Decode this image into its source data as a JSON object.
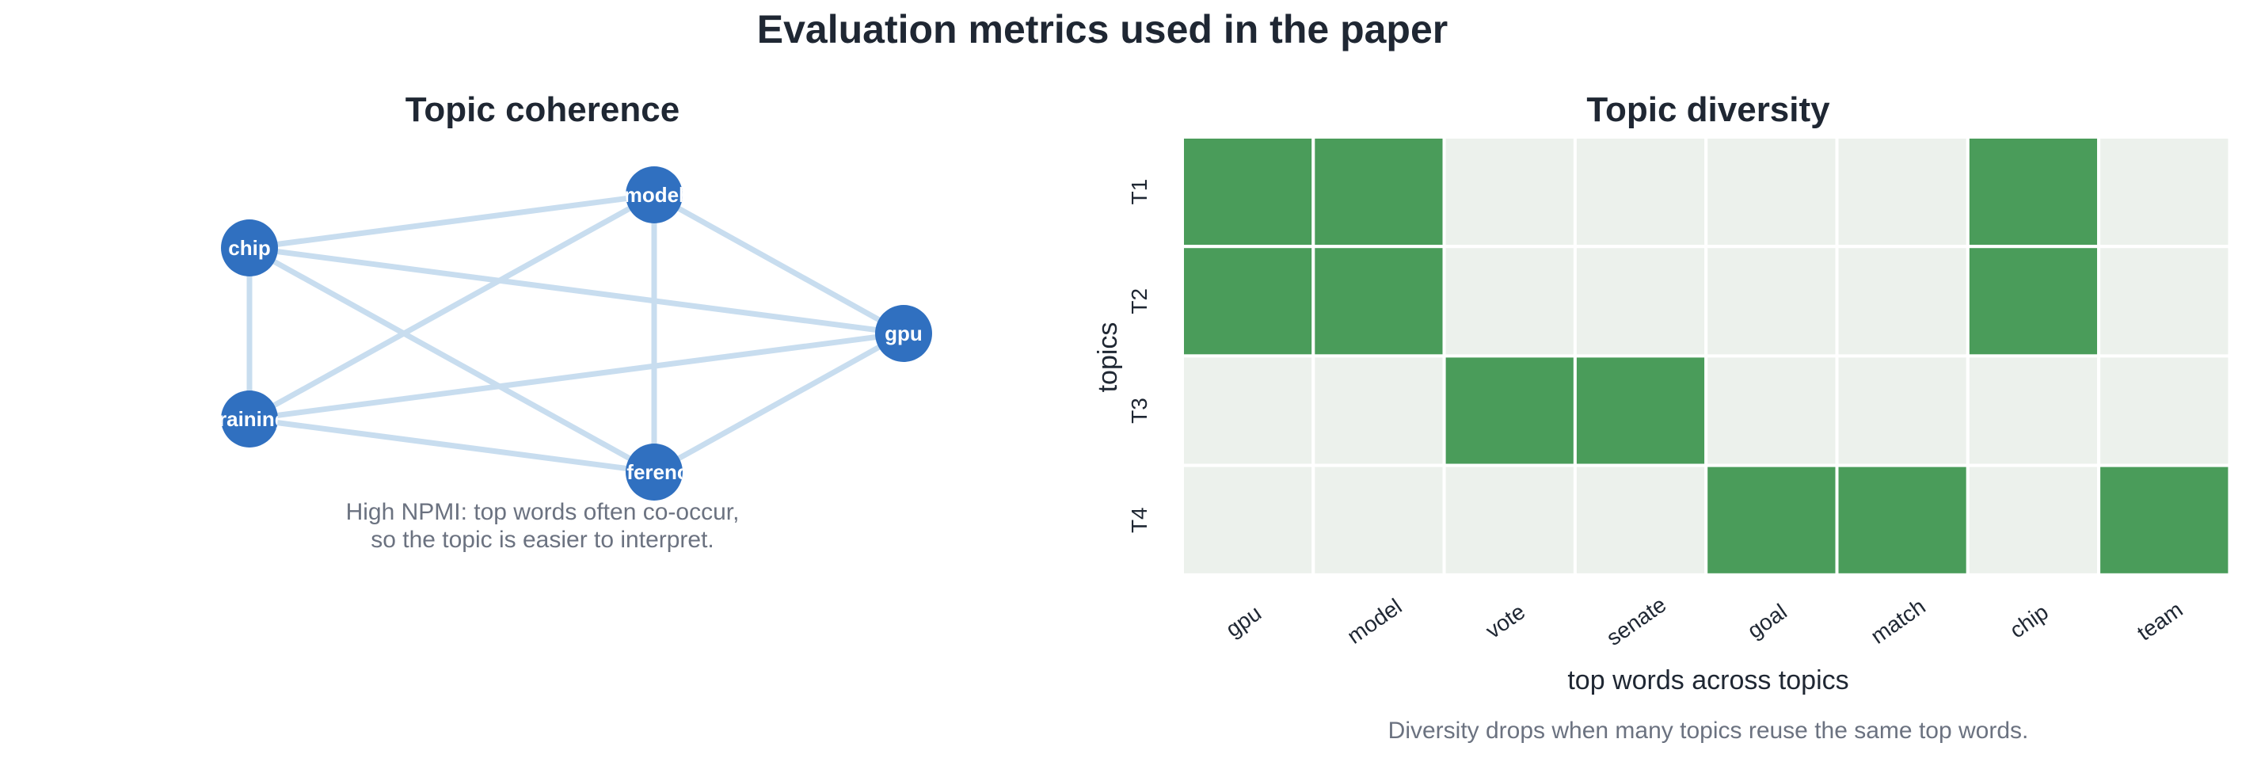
{
  "figure": {
    "title": "Evaluation metrics used in the paper"
  },
  "coherence": {
    "title": "Topic coherence",
    "caption_lines": [
      "High NPMI: top words often co-occur,",
      "so the topic is easier to interpret."
    ],
    "node_color": "#3070c0",
    "edge_color": "#c8ddef",
    "nodes": [
      {
        "id": "chip",
        "label": "chip"
      },
      {
        "id": "model",
        "label": "model"
      },
      {
        "id": "gpu",
        "label": "gpu"
      },
      {
        "id": "training",
        "label": "training"
      },
      {
        "id": "inference",
        "label": "inference"
      }
    ],
    "edges": [
      [
        "chip",
        "model"
      ],
      [
        "chip",
        "gpu"
      ],
      [
        "chip",
        "training"
      ],
      [
        "chip",
        "inference"
      ],
      [
        "model",
        "training"
      ],
      [
        "model",
        "inference"
      ],
      [
        "model",
        "gpu"
      ],
      [
        "training",
        "gpu"
      ],
      [
        "training",
        "inference"
      ],
      [
        "inference",
        "gpu"
      ]
    ]
  },
  "diversity": {
    "title": "Topic diversity",
    "xlabel": "top words across topics",
    "ylabel": "topics",
    "caption": "Diversity drops when many topics reuse the same top words.",
    "on_color": "#4a9c5a",
    "off_color": "#ecf1ec",
    "words": [
      "gpu",
      "model",
      "vote",
      "senate",
      "goal",
      "match",
      "chip",
      "team"
    ],
    "topics": [
      "T1",
      "T2",
      "T3",
      "T4"
    ]
  },
  "chart_data": {
    "type": "heatmap",
    "title": "Topic diversity",
    "xlabel": "top words across topics",
    "ylabel": "topics",
    "x": [
      "gpu",
      "model",
      "vote",
      "senate",
      "goal",
      "match",
      "chip",
      "team"
    ],
    "y": [
      "T1",
      "T2",
      "T3",
      "T4"
    ],
    "values": [
      [
        1,
        1,
        0,
        0,
        0,
        0,
        1,
        0
      ],
      [
        1,
        1,
        0,
        0,
        0,
        0,
        1,
        0
      ],
      [
        0,
        0,
        1,
        1,
        0,
        0,
        0,
        0
      ],
      [
        0,
        0,
        0,
        0,
        1,
        1,
        0,
        1
      ]
    ],
    "grid": true
  }
}
